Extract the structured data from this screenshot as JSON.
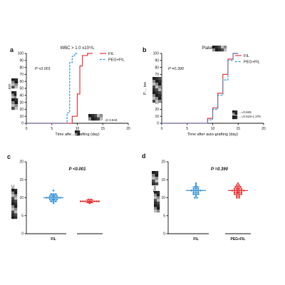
{
  "colors": {
    "fil": "#e8373a",
    "peg": "#3a93d6",
    "axis": "#111111",
    "obscured_box": "#333333"
  },
  "chart_data": [
    {
      "panel": "a",
      "type": "line",
      "subtype": "step-cumulative-incidence",
      "title": "WBC > 1.0 x10⁹/L",
      "xlabel": "Time afte… grafting (day)",
      "ylabel": "…ion",
      "xlim": [
        0,
        20
      ],
      "ylim": [
        0,
        100
      ],
      "xticks": [
        "0",
        "5",
        "10",
        "15",
        "20"
      ],
      "yticks": [
        "0",
        "10",
        "20",
        "30",
        "40",
        "50",
        "60",
        "70",
        "80",
        "90",
        "100"
      ],
      "pvalue_text": "P <0.001",
      "stat_text": "i2-3.643",
      "legend": {
        "position": "middle-right",
        "entries": [
          "FIL",
          "PEG+FIL"
        ]
      },
      "series": [
        {
          "name": "FIL",
          "color_key": "fil",
          "style": "solid",
          "points": [
            [
              0,
              0
            ],
            [
              9,
              0
            ],
            [
              9,
              10
            ],
            [
              10,
              10
            ],
            [
              10,
              42
            ],
            [
              10.5,
              42
            ],
            [
              10.5,
              82
            ],
            [
              11,
              82
            ],
            [
              11,
              97
            ],
            [
              12,
              97
            ],
            [
              12,
              100
            ],
            [
              13,
              100
            ]
          ]
        },
        {
          "name": "PEG+FIL",
          "color_key": "peg",
          "style": "dashed",
          "points": [
            [
              0,
              0
            ],
            [
              8,
              0
            ],
            [
              8,
              15
            ],
            [
              8.5,
              15
            ],
            [
              8.5,
              87
            ],
            [
              9,
              87
            ],
            [
              9,
              96
            ],
            [
              9.5,
              96
            ],
            [
              9.5,
              100
            ],
            [
              10,
              100
            ]
          ]
        }
      ]
    },
    {
      "panel": "b",
      "type": "line",
      "subtype": "step-cumulative-incidence",
      "title": "Platel… ⁹/L",
      "xlabel": "Time after auto-grafting (day)",
      "ylabel": "P… ion",
      "xlim": [
        0,
        20
      ],
      "ylim": [
        0,
        100
      ],
      "xticks": [
        "0",
        "5",
        "10",
        "15",
        "20"
      ],
      "yticks": [
        "0",
        "10",
        "20",
        "30",
        "40",
        "50",
        "60",
        "70",
        "80",
        "90",
        "100"
      ],
      "pvalue_text": "P =0.390",
      "stat_lines": [
        "…=0.845",
        "…=0.519-1.376"
      ],
      "legend": {
        "position": "top-right",
        "entries": [
          "FIL",
          "PEG+FIL"
        ]
      },
      "series": [
        {
          "name": "FIL",
          "color_key": "fil",
          "style": "solid",
          "points": [
            [
              0,
              0
            ],
            [
              9,
              0
            ],
            [
              9,
              7
            ],
            [
              10,
              7
            ],
            [
              10,
              22
            ],
            [
              11,
              22
            ],
            [
              11,
              43
            ],
            [
              12,
              43
            ],
            [
              12,
              70
            ],
            [
              13,
              70
            ],
            [
              13,
              92
            ],
            [
              14,
              92
            ],
            [
              14,
              100
            ],
            [
              15,
              100
            ]
          ]
        },
        {
          "name": "PEG+FIL",
          "color_key": "peg",
          "style": "dashed",
          "points": [
            [
              0,
              0
            ],
            [
              9,
              0
            ],
            [
              9,
              5
            ],
            [
              10,
              5
            ],
            [
              10,
              20
            ],
            [
              11,
              20
            ],
            [
              11,
              40
            ],
            [
              12,
              40
            ],
            [
              12,
              62
            ],
            [
              13,
              62
            ],
            [
              13,
              90
            ],
            [
              14,
              90
            ],
            [
              14,
              100
            ],
            [
              15,
              100
            ]
          ]
        }
      ]
    },
    {
      "panel": "c",
      "type": "scatter",
      "subtype": "dot-plot-mean-sd",
      "title": "P <0.001",
      "ylabel": "WBC",
      "ylim": [
        0,
        20
      ],
      "yticks": [
        "0",
        "5",
        "10",
        "15",
        "20"
      ],
      "categories": [
        "FIL",
        ""
      ],
      "series": [
        {
          "name": "FIL",
          "color_key": "peg",
          "category_index": 0,
          "mean": 10,
          "sd": 1,
          "values": [
            12,
            11,
            11,
            11,
            10.5,
            10.5,
            10.5,
            10.5,
            10,
            10,
            10,
            10,
            10,
            10,
            10,
            9.5,
            9.5,
            9.5,
            9.5,
            9,
            9,
            9,
            8.5
          ]
        },
        {
          "name": "",
          "color_key": "fil",
          "category_index": 1,
          "mean": 9,
          "sd": 0.4,
          "values": [
            9.5,
            9.5,
            9,
            9,
            9,
            9,
            9,
            9,
            9,
            9,
            9,
            8.7,
            8.7,
            8.5
          ]
        }
      ]
    },
    {
      "panel": "d",
      "type": "scatter",
      "subtype": "dot-plot-mean-sd",
      "title": "P =0.390",
      "ylabel": "Tim",
      "ylim": [
        0,
        20
      ],
      "yticks": [
        "0",
        "5",
        "10",
        "15",
        "20"
      ],
      "categories": [
        "FIL",
        "PEG+FIL"
      ],
      "series": [
        {
          "name": "FIL",
          "color_key": "peg",
          "category_index": 0,
          "mean": 12,
          "sd": 1,
          "values": [
            14,
            13.5,
            13,
            13,
            12.5,
            12.5,
            12.5,
            12,
            12,
            12,
            12,
            12,
            11.5,
            11.5,
            11.5,
            11,
            11,
            11,
            10.5,
            10,
            10
          ]
        },
        {
          "name": "PEG+FIL",
          "color_key": "fil",
          "category_index": 1,
          "mean": 12,
          "sd": 1,
          "values": [
            14,
            13.5,
            13.5,
            13,
            13,
            13,
            12.5,
            12.5,
            12.5,
            12.5,
            12,
            12,
            12,
            12,
            12,
            12,
            11.5,
            11.5,
            11.5,
            11.5,
            11,
            11,
            11,
            11,
            10.5,
            10.5,
            10,
            10
          ]
        }
      ]
    }
  ]
}
